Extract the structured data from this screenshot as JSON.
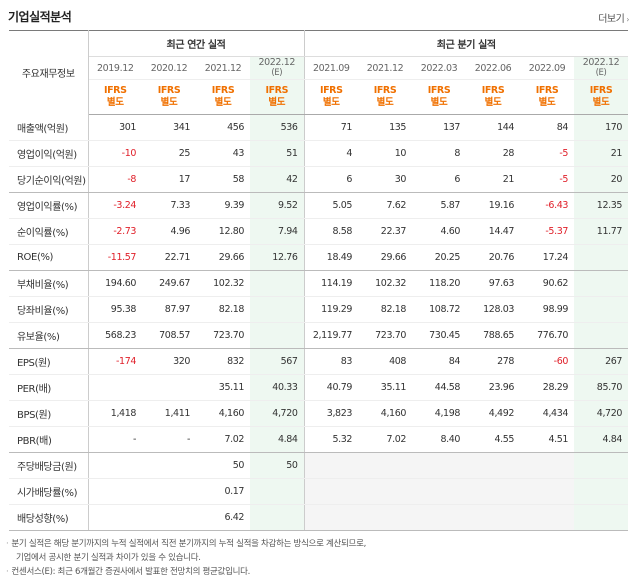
{
  "header": {
    "title": "기업실적분석",
    "more_label": "더보기"
  },
  "table": {
    "label_header": "주요재무정보",
    "annual_title": "최근 연간 실적",
    "quarter_title": "최근 분기 실적",
    "periods": [
      "2019.12",
      "2020.12",
      "2021.12",
      "2022.12",
      "2021.09",
      "2021.12",
      "2022.03",
      "2022.06",
      "2022.09",
      "2022.12"
    ],
    "period_est": [
      "",
      "",
      "",
      "(E)",
      "",
      "",
      "",
      "",
      "",
      "(E)"
    ],
    "ifrs_line1": "IFRS",
    "ifrs_line2": "별도",
    "rows": [
      {
        "label": "매출액(억원)",
        "values": [
          "301",
          "341",
          "456",
          "536",
          "71",
          "135",
          "137",
          "144",
          "84",
          "170"
        ]
      },
      {
        "label": "영업이익(억원)",
        "values": [
          "-10",
          "25",
          "43",
          "51",
          "4",
          "10",
          "8",
          "28",
          "-5",
          "21"
        ]
      },
      {
        "label": "당기순이익(억원)",
        "values": [
          "-8",
          "17",
          "58",
          "42",
          "6",
          "30",
          "6",
          "21",
          "-5",
          "20"
        ]
      },
      {
        "label": "영업이익률(%)",
        "values": [
          "-3.24",
          "7.33",
          "9.39",
          "9.52",
          "5.05",
          "7.62",
          "5.87",
          "19.16",
          "-6.43",
          "12.35"
        ]
      },
      {
        "label": "순이익률(%)",
        "values": [
          "-2.73",
          "4.96",
          "12.80",
          "7.94",
          "8.58",
          "22.37",
          "4.60",
          "14.47",
          "-5.37",
          "11.77"
        ]
      },
      {
        "label": "ROE(%)",
        "values": [
          "-11.57",
          "22.71",
          "29.66",
          "12.76",
          "18.49",
          "29.66",
          "20.25",
          "20.76",
          "17.24",
          ""
        ]
      },
      {
        "label": "부채비율(%)",
        "values": [
          "194.60",
          "249.67",
          "102.32",
          "",
          "114.19",
          "102.32",
          "118.20",
          "97.63",
          "90.62",
          ""
        ]
      },
      {
        "label": "당좌비율(%)",
        "values": [
          "95.38",
          "87.97",
          "82.18",
          "",
          "119.29",
          "82.18",
          "108.72",
          "128.03",
          "98.99",
          ""
        ]
      },
      {
        "label": "유보율(%)",
        "values": [
          "568.23",
          "708.57",
          "723.70",
          "",
          "2,119.77",
          "723.70",
          "730.45",
          "788.65",
          "776.70",
          ""
        ]
      },
      {
        "label": "EPS(원)",
        "values": [
          "-174",
          "320",
          "832",
          "567",
          "83",
          "408",
          "84",
          "278",
          "-60",
          "267"
        ]
      },
      {
        "label": "PER(배)",
        "values": [
          "",
          "",
          "35.11",
          "40.33",
          "40.79",
          "35.11",
          "44.58",
          "23.96",
          "28.29",
          "85.70"
        ]
      },
      {
        "label": "BPS(원)",
        "values": [
          "1,418",
          "1,411",
          "4,160",
          "4,720",
          "3,823",
          "4,160",
          "4,198",
          "4,492",
          "4,434",
          "4,720"
        ]
      },
      {
        "label": "PBR(배)",
        "values": [
          "-",
          "-",
          "7.02",
          "4.84",
          "5.32",
          "7.02",
          "8.40",
          "4.55",
          "4.51",
          "4.84"
        ]
      },
      {
        "label": "주당배당금(원)",
        "values": [
          "",
          "",
          "50",
          "50",
          "",
          "",
          "",
          "",
          "",
          ""
        ]
      },
      {
        "label": "시가배당률(%)",
        "values": [
          "",
          "",
          "0.17",
          "",
          "",
          "",
          "",
          "",
          "",
          ""
        ]
      },
      {
        "label": "배당성향(%)",
        "values": [
          "",
          "",
          "6.42",
          "",
          "",
          "",
          "",
          "",
          "",
          ""
        ]
      }
    ]
  },
  "notes": [
    "분기 실적은 해당 분기까지의 누적 실적에서 직전 분기까지의 누적 실적을 차감하는 방식으로 계산되므로,",
    "기업에서 공시한 분기 실적과 차이가 있을 수 있습니다.",
    "컨센서스(E): 최근 6개월간 증권사에서 발표한 전망치의 평균값입니다."
  ],
  "colors": {
    "negative": "#e0202a",
    "ifrs": "#f07000",
    "estimate_bg": "#eef8f1",
    "empty_bg": "#f5f5f5"
  }
}
